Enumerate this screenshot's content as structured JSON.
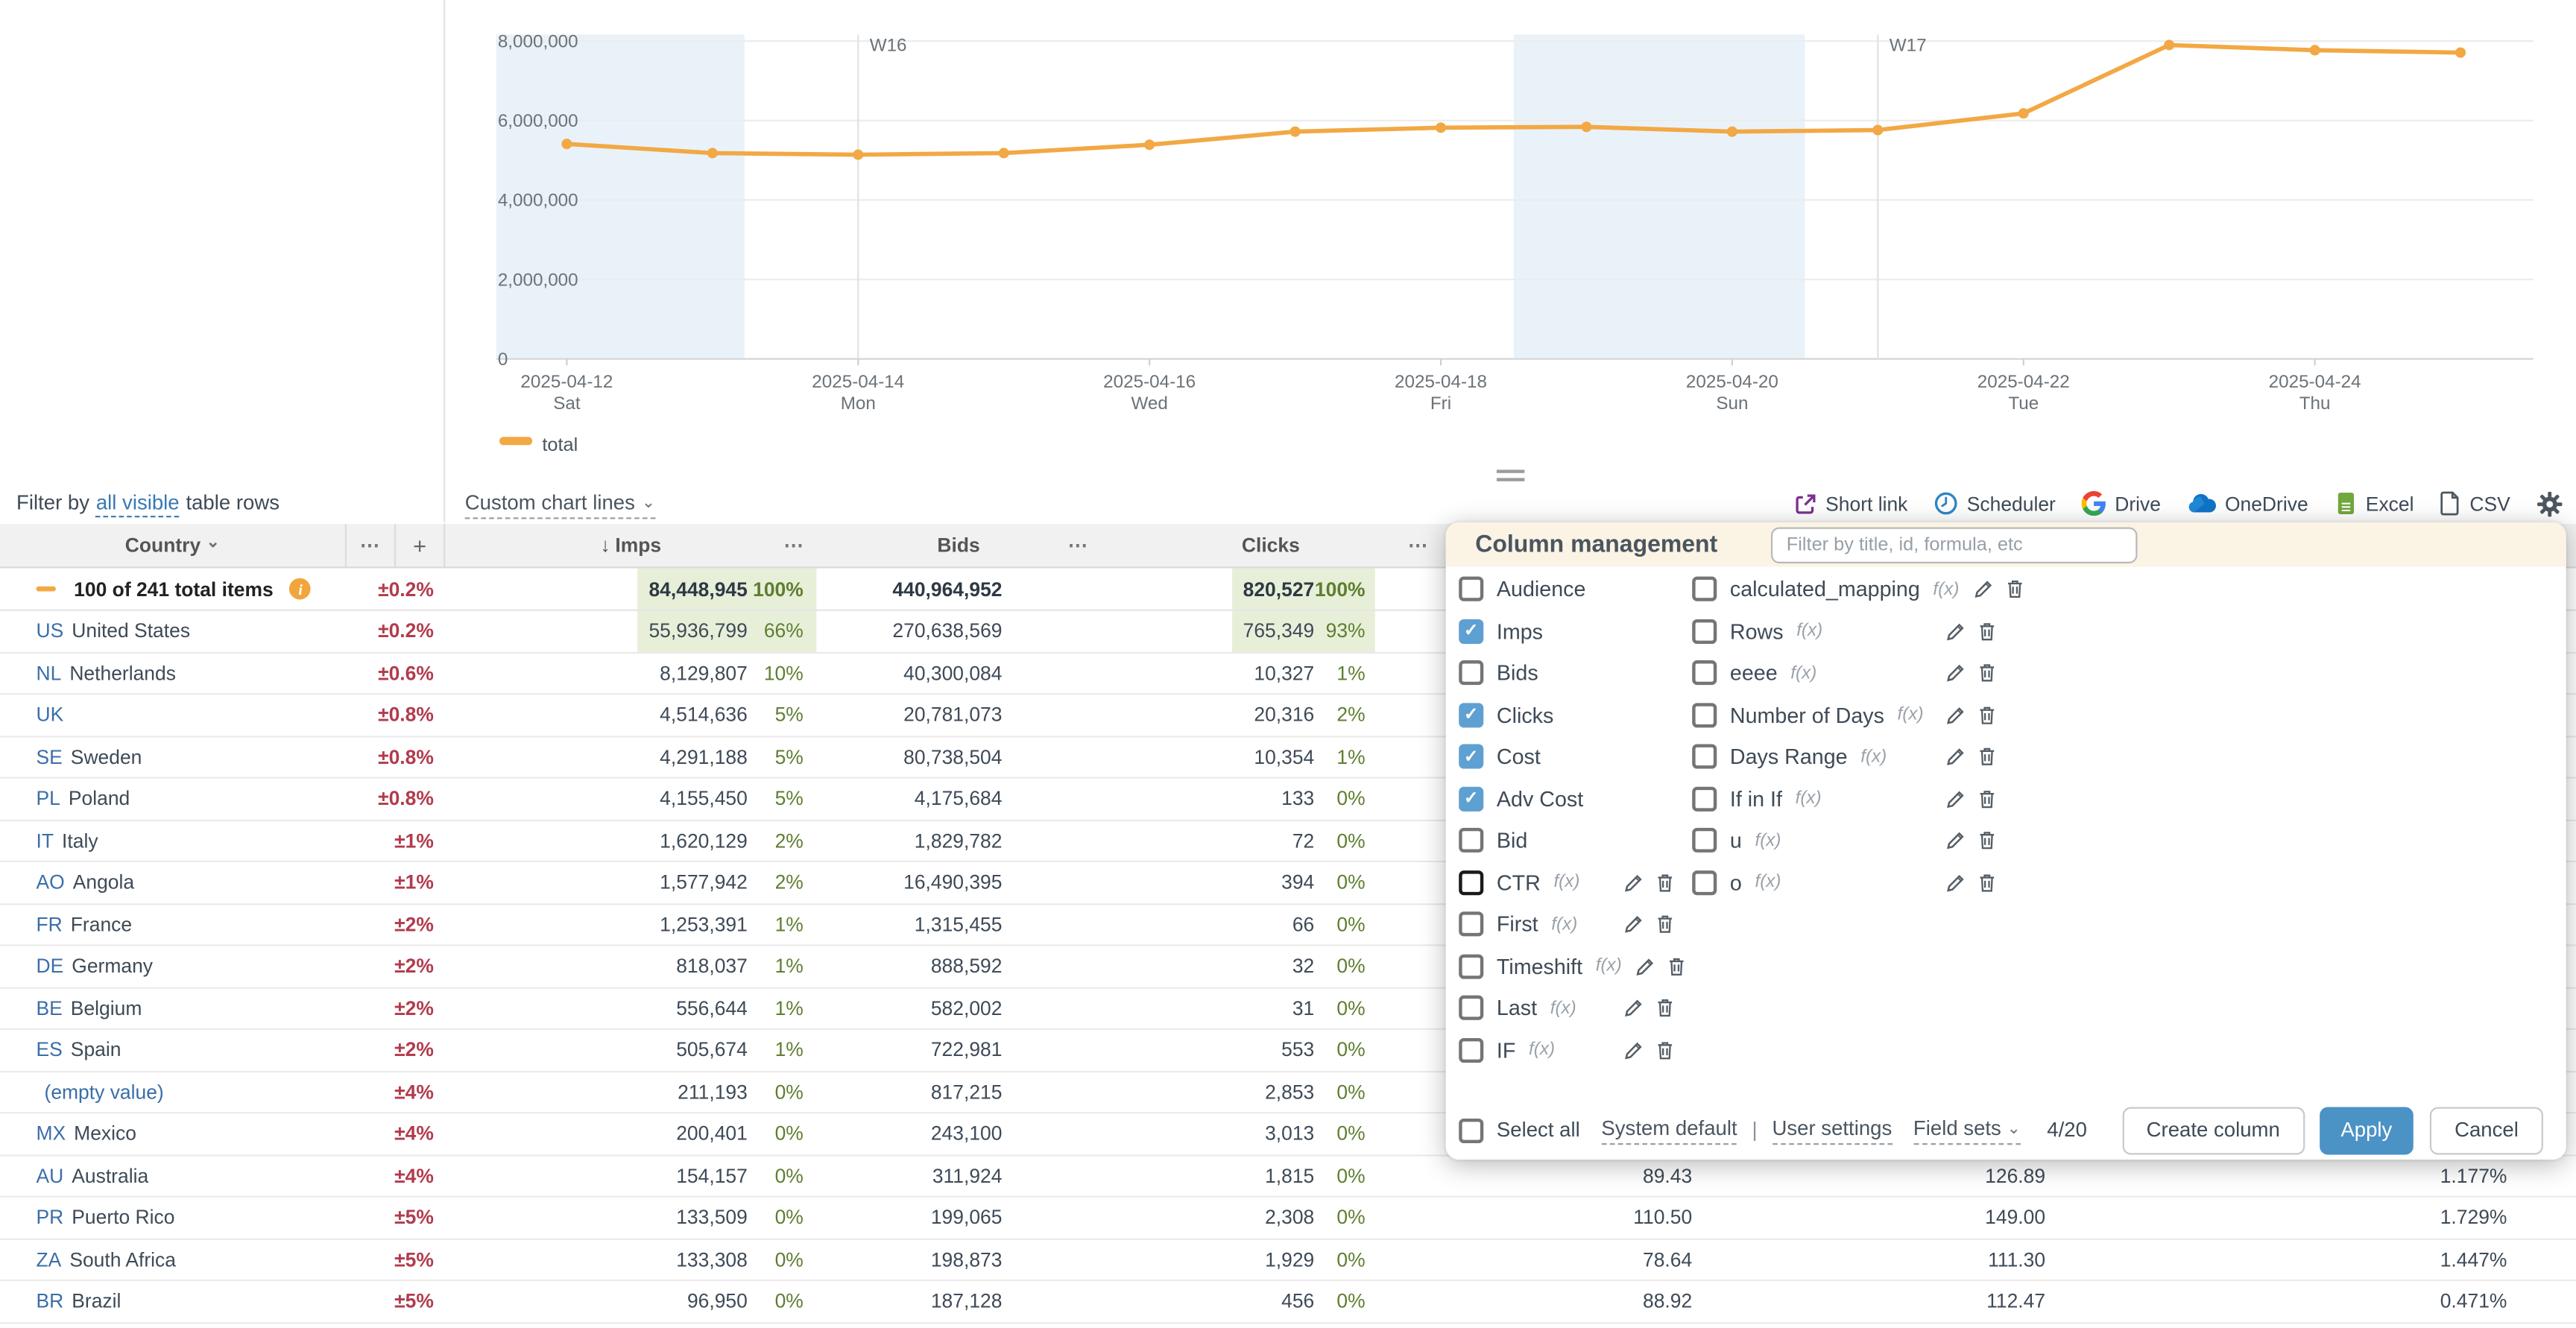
{
  "chart_data": {
    "type": "line",
    "title": "",
    "x": [
      "2025-04-12",
      "2025-04-13",
      "2025-04-14",
      "2025-04-15",
      "2025-04-16",
      "2025-04-17",
      "2025-04-18",
      "2025-04-19",
      "2025-04-20",
      "2025-04-21",
      "2025-04-22",
      "2025-04-23",
      "2025-04-24",
      "2025-04-25"
    ],
    "series": [
      {
        "name": "total",
        "color": "#F2A844",
        "values": [
          5410000,
          5180000,
          5140000,
          5180000,
          5390000,
          5720000,
          5820000,
          5840000,
          5720000,
          5760000,
          6180000,
          7900000,
          7770000,
          7710000
        ]
      }
    ],
    "ylim": [
      0,
      8000000
    ],
    "yticks": [
      0,
      2000000,
      4000000,
      6000000,
      8000000
    ],
    "xticks": [
      {
        "i": 0,
        "date": "2025-04-12",
        "day": "Sat"
      },
      {
        "i": 2,
        "date": "2025-04-14",
        "day": "Mon"
      },
      {
        "i": 4,
        "date": "2025-04-16",
        "day": "Wed"
      },
      {
        "i": 6,
        "date": "2025-04-18",
        "day": "Fri"
      },
      {
        "i": 8,
        "date": "2025-04-20",
        "day": "Sun"
      },
      {
        "i": 10,
        "date": "2025-04-22",
        "day": "Tue"
      },
      {
        "i": 12,
        "date": "2025-04-24",
        "day": "Thu"
      }
    ],
    "week_markers": [
      {
        "i": 2,
        "label": "W16"
      },
      {
        "i": 9,
        "label": "W17"
      }
    ],
    "weekend_bands": [
      {
        "from": -0.6,
        "to": 1.22
      },
      {
        "from": 6.5,
        "to": 8.5
      }
    ],
    "legend": [
      {
        "label": "total",
        "color": "#F2A844"
      }
    ],
    "grid": true,
    "legend_position": "bottom-left"
  },
  "filter_bar": {
    "label_prefix": "Filter by",
    "link_text": "all visible",
    "label_suffix": "table rows",
    "custom_chart_lines_label": "Custom chart lines"
  },
  "toolbar": {
    "items": [
      {
        "name": "short-link",
        "label": "Short link"
      },
      {
        "name": "scheduler",
        "label": "Scheduler"
      },
      {
        "name": "drive",
        "label": "Drive"
      },
      {
        "name": "onedrive",
        "label": "OneDrive"
      },
      {
        "name": "excel",
        "label": "Excel"
      },
      {
        "name": "csv",
        "label": "CSV"
      }
    ]
  },
  "icons": {
    "chevron_down": "⌄",
    "menu_dots": "⋯",
    "sort_desc": "↓",
    "add_column": "+",
    "info": "i"
  },
  "table": {
    "headers": {
      "country": "Country",
      "imps": "Imps",
      "bids": "Bids",
      "clicks": "Clicks"
    },
    "total_row": {
      "label": "100 of 241 total items",
      "err": "±0.2%",
      "imps": "84,448,945",
      "imps_pct": "100%",
      "bids": "440,964,952",
      "clicks": "820,527",
      "clicks_pct": "100%"
    },
    "rows": [
      {
        "code": "US",
        "name": "United States",
        "err": "±0.2%",
        "imps": "55,936,799",
        "imps_pct": "66%",
        "imps_hl": true,
        "bids": "270,638,569",
        "clicks": "765,349",
        "clicks_pct": "93%",
        "clicks_hl": true,
        "cost": "",
        "adv_cost": "",
        "ctr": ""
      },
      {
        "code": "NL",
        "name": "Netherlands",
        "err": "±0.6%",
        "imps": "8,129,807",
        "imps_pct": "10%",
        "bids": "40,300,084",
        "clicks": "10,327",
        "clicks_pct": "1%",
        "cost": "",
        "adv_cost": "",
        "ctr": ""
      },
      {
        "code": "UK",
        "name": "",
        "err": "±0.8%",
        "imps": "4,514,636",
        "imps_pct": "5%",
        "bids": "20,781,073",
        "clicks": "20,316",
        "clicks_pct": "2%",
        "cost": "",
        "adv_cost": "",
        "ctr": ""
      },
      {
        "code": "SE",
        "name": "Sweden",
        "err": "±0.8%",
        "imps": "4,291,188",
        "imps_pct": "5%",
        "bids": "80,738,504",
        "clicks": "10,354",
        "clicks_pct": "1%",
        "cost": "",
        "adv_cost": "",
        "ctr": ""
      },
      {
        "code": "PL",
        "name": "Poland",
        "err": "±0.8%",
        "imps": "4,155,450",
        "imps_pct": "5%",
        "bids": "4,175,684",
        "clicks": "133",
        "clicks_pct": "0%",
        "cost": "",
        "adv_cost": "",
        "ctr": ""
      },
      {
        "code": "IT",
        "name": "Italy",
        "err": "±1%",
        "imps": "1,620,129",
        "imps_pct": "2%",
        "bids": "1,829,782",
        "clicks": "72",
        "clicks_pct": "0%",
        "cost": "",
        "adv_cost": "",
        "ctr": ""
      },
      {
        "code": "AO",
        "name": "Angola",
        "err": "±1%",
        "imps": "1,577,942",
        "imps_pct": "2%",
        "bids": "16,490,395",
        "clicks": "394",
        "clicks_pct": "0%",
        "cost": "",
        "adv_cost": "",
        "ctr": ""
      },
      {
        "code": "FR",
        "name": "France",
        "err": "±2%",
        "imps": "1,253,391",
        "imps_pct": "1%",
        "bids": "1,315,455",
        "clicks": "66",
        "clicks_pct": "0%",
        "cost": "",
        "adv_cost": "",
        "ctr": ""
      },
      {
        "code": "DE",
        "name": "Germany",
        "err": "±2%",
        "imps": "818,037",
        "imps_pct": "1%",
        "bids": "888,592",
        "clicks": "32",
        "clicks_pct": "0%",
        "cost": "",
        "adv_cost": "",
        "ctr": ""
      },
      {
        "code": "BE",
        "name": "Belgium",
        "err": "±2%",
        "imps": "556,644",
        "imps_pct": "1%",
        "bids": "582,002",
        "clicks": "31",
        "clicks_pct": "0%",
        "cost": "",
        "adv_cost": "",
        "ctr": ""
      },
      {
        "code": "ES",
        "name": "Spain",
        "err": "±2%",
        "imps": "505,674",
        "imps_pct": "1%",
        "bids": "722,981",
        "clicks": "553",
        "clicks_pct": "0%",
        "cost": "",
        "adv_cost": "",
        "ctr": ""
      },
      {
        "code": "",
        "name": "(empty value)",
        "name_link": true,
        "err": "±4%",
        "imps": "211,193",
        "imps_pct": "0%",
        "bids": "817,215",
        "clicks": "2,853",
        "clicks_pct": "0%",
        "cost": "",
        "adv_cost": "",
        "ctr": ""
      },
      {
        "code": "MX",
        "name": "Mexico",
        "err": "±4%",
        "imps": "200,401",
        "imps_pct": "0%",
        "bids": "243,100",
        "clicks": "3,013",
        "clicks_pct": "0%",
        "cost": "",
        "adv_cost": "",
        "ctr": ""
      },
      {
        "code": "AU",
        "name": "Australia",
        "err": "±4%",
        "imps": "154,157",
        "imps_pct": "0%",
        "bids": "311,924",
        "clicks": "1,815",
        "clicks_pct": "0%",
        "cost": "89.43",
        "adv_cost": "126.89",
        "ctr": "1.177%"
      },
      {
        "code": "PR",
        "name": "Puerto Rico",
        "err": "±5%",
        "imps": "133,509",
        "imps_pct": "0%",
        "bids": "199,065",
        "clicks": "2,308",
        "clicks_pct": "0%",
        "cost": "110.50",
        "adv_cost": "149.00",
        "ctr": "1.729%"
      },
      {
        "code": "ZA",
        "name": "South Africa",
        "err": "±5%",
        "imps": "133,308",
        "imps_pct": "0%",
        "bids": "198,873",
        "clicks": "1,929",
        "clicks_pct": "0%",
        "cost": "78.64",
        "adv_cost": "111.30",
        "ctr": "1.447%"
      },
      {
        "code": "BR",
        "name": "Brazil",
        "err": "±5%",
        "imps": "96,950",
        "imps_pct": "0%",
        "bids": "187,128",
        "clicks": "456",
        "clicks_pct": "0%",
        "cost": "88.92",
        "adv_cost": "112.47",
        "ctr": "0.471%"
      }
    ]
  },
  "panel": {
    "title": "Column management",
    "filter_placeholder": "Filter by title, id, formula, etc",
    "fx_label": "f(x)",
    "left_items": [
      {
        "label": "Audience",
        "checked": false
      },
      {
        "label": "Imps",
        "checked": true
      },
      {
        "label": "Bids",
        "checked": false
      },
      {
        "label": "Clicks",
        "checked": true
      },
      {
        "label": "Cost",
        "checked": true
      },
      {
        "label": "Adv Cost",
        "checked": true
      },
      {
        "label": "Bid",
        "checked": false
      },
      {
        "label": "CTR",
        "checked": false,
        "formula": true,
        "actions": true,
        "focused": true
      },
      {
        "label": "First",
        "checked": false,
        "formula": true,
        "actions": true
      },
      {
        "label": "Timeshift",
        "checked": false,
        "formula": true,
        "actions": true
      },
      {
        "label": "Last",
        "checked": false,
        "formula": true,
        "actions": true
      },
      {
        "label": "IF",
        "checked": false,
        "formula": true,
        "actions": true
      }
    ],
    "right_items": [
      {
        "label": "calculated_mapping",
        "checked": false,
        "formula": true,
        "actions": true
      },
      {
        "label": "Rows",
        "checked": false,
        "formula": true,
        "actions": true
      },
      {
        "label": "eeee",
        "checked": false,
        "formula": true,
        "actions": true
      },
      {
        "label": "Number of Days",
        "checked": false,
        "formula": true,
        "actions": true
      },
      {
        "label": "Days Range",
        "checked": false,
        "formula": true,
        "actions": true
      },
      {
        "label": "If in If",
        "checked": false,
        "formula": true,
        "actions": true
      },
      {
        "label": "u",
        "checked": false,
        "formula": true,
        "actions": true
      },
      {
        "label": "o",
        "checked": false,
        "formula": true,
        "actions": true
      }
    ],
    "footer": {
      "select_all": "Select all",
      "system_default": "System default",
      "separator": "|",
      "user_settings": "User settings",
      "field_sets": "Field sets",
      "counter": "4/20",
      "create_column": "Create column",
      "apply": "Apply",
      "cancel": "Cancel"
    }
  },
  "colors": {
    "accent_orange": "#F2A844",
    "highlight_green_bg": "#E7EFD9",
    "percent_green": "#5E7E30",
    "error_red": "#B23B4D",
    "link_blue": "#3878B4",
    "checkbox_blue": "#5FA0D2",
    "apply_blue": "#4B92C5",
    "panel_header_cream": "#FBF3E4",
    "weekend_band_blue": "#EAF2F9"
  }
}
